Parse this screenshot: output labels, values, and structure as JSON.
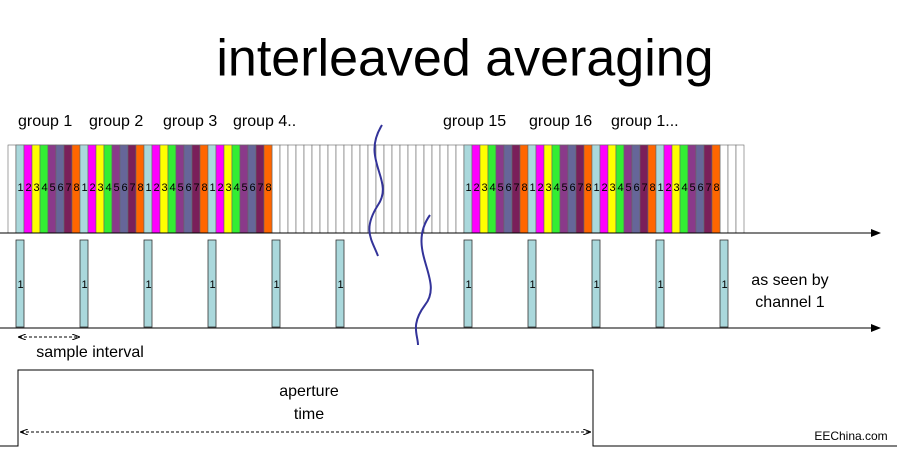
{
  "title": "interleaved averaging",
  "group_labels": [
    "group 1",
    "group 2",
    "group 3",
    "group 4..",
    "group 15",
    "group 16",
    "group 1..."
  ],
  "slot_labels": [
    "1",
    "2",
    "3",
    "4",
    "5",
    "6",
    "7",
    "8"
  ],
  "channel_caption": [
    "as seen by",
    "channel 1"
  ],
  "sample_interval": "sample interval",
  "aperture": [
    "aperture",
    "time"
  ],
  "watermark": "EEChina.com"
}
